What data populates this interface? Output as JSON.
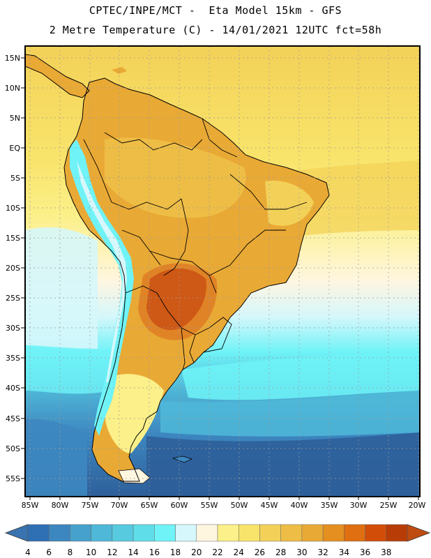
{
  "header": {
    "line1": "CPTEC/INPE/MCT -  Eta Model 15km - GFS",
    "line2": "2 Metre Temperature (C) - 14/01/2021 12UTC fct=58h"
  },
  "axes": {
    "lat_ticks": [
      "15N",
      "10N",
      "5N",
      "EQ",
      "5S",
      "10S",
      "15S",
      "20S",
      "25S",
      "30S",
      "35S",
      "40S",
      "45S",
      "50S",
      "55S"
    ],
    "lon_ticks": [
      "85W",
      "80W",
      "75W",
      "70W",
      "65W",
      "60W",
      "55W",
      "50W",
      "45W",
      "40W",
      "35W",
      "30W",
      "25W",
      "20W"
    ]
  },
  "colorbar": {
    "labels": [
      "4",
      "6",
      "8",
      "10",
      "12",
      "14",
      "16",
      "18",
      "20",
      "22",
      "24",
      "26",
      "28",
      "30",
      "32",
      "34",
      "36",
      "38"
    ],
    "colors": [
      "#3a74b0",
      "#2f6fb3",
      "#3d87c0",
      "#46a1cc",
      "#4fb8d8",
      "#57cae0",
      "#5fdde9",
      "#6ff3f7",
      "#d6f7fb",
      "#fff6e0",
      "#fbf08a",
      "#f9e46b",
      "#f3d158",
      "#eebd45",
      "#e9a935",
      "#e48f20",
      "#df6f10",
      "#d24e08",
      "#b83c06",
      "#c04b10"
    ],
    "left_arrow_color": "#3a74b0",
    "right_arrow_color": "#c04b10"
  },
  "palette": {
    "ocean_deep": "#2e5f9a",
    "ocean_mid": "#3d87c0",
    "ocean_cyan": "#5fdde9",
    "ocean_light": "#d6f7fb",
    "ocean_warm": "#f9e46b",
    "ocean_tropical": "#f3d158",
    "land_warm": "#e9a935",
    "land_hot": "#c24a10",
    "andes": "#6ff3f7",
    "border": "#000000",
    "grid": "#9a9a9a"
  }
}
